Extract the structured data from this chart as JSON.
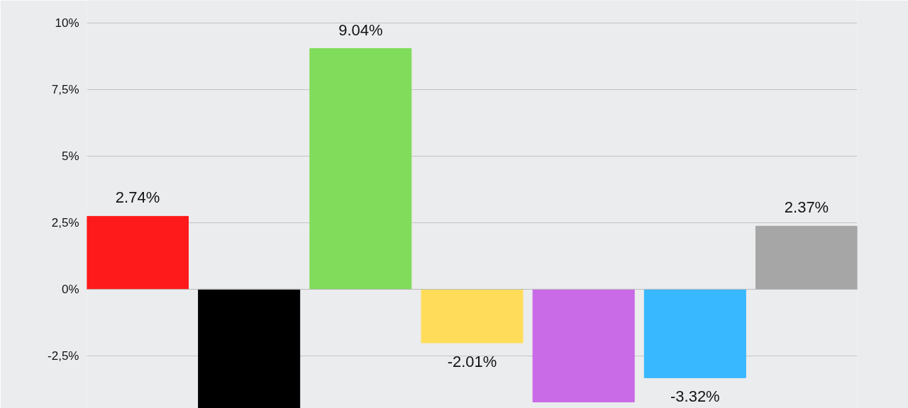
{
  "chart_data": {
    "type": "bar",
    "categories": [
      null,
      null,
      null,
      null,
      null,
      null,
      null
    ],
    "values": [
      2.74,
      -4.47,
      9.04,
      -2.01,
      -4.23,
      -3.32,
      2.37
    ],
    "colors": [
      "#fe1a1a",
      "#000000",
      "#80dc5a",
      "#ffdd5a",
      "#c96ae6",
      "#38b8fe",
      "#a6a6a6"
    ],
    "value_labels": [
      "2.74%",
      null,
      "9.04%",
      "-2.01%",
      null,
      "-3.32%",
      "2.37%"
    ],
    "ylim": [
      -4.47,
      10.85
    ],
    "yticks": [
      {
        "value": -2.5,
        "label": "-2,5%"
      },
      {
        "value": 0,
        "label": "0%"
      },
      {
        "value": 2.5,
        "label": "2,5%"
      },
      {
        "value": 5,
        "label": "5%"
      },
      {
        "value": 7.5,
        "label": "7,5%"
      },
      {
        "value": 10,
        "label": "10%"
      }
    ],
    "grid": "y"
  }
}
